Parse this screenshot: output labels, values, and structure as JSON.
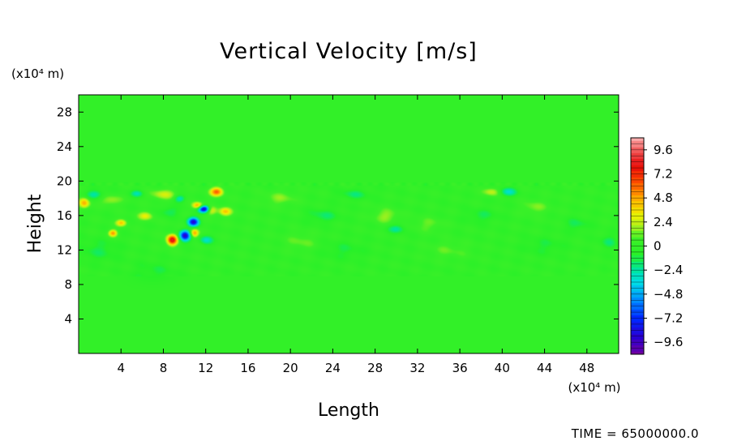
{
  "chart_data": {
    "type": "heatmap",
    "title": "Vertical Velocity [m/s]",
    "xlabel": "Length",
    "ylabel": "Height",
    "x_unit": "(x10⁴ m)",
    "y_unit": "(x10⁴ m)",
    "xlim": [
      0,
      51
    ],
    "ylim": [
      0,
      30
    ],
    "x_ticks": [
      4,
      8,
      12,
      16,
      20,
      24,
      28,
      32,
      36,
      40,
      44,
      48
    ],
    "y_ticks": [
      4,
      8,
      12,
      16,
      20,
      24,
      28
    ],
    "colorbar": {
      "range": [
        -10.8,
        10.8
      ],
      "ticks": [
        9.6,
        7.2,
        4.8,
        2.4,
        0,
        -2.4,
        -4.8,
        -7.2,
        -9.6
      ],
      "tick_labels": [
        "9.6",
        "7.2",
        "4.8",
        "2.4",
        "0",
        "−2.4",
        "−4.8",
        "−7.2",
        "−9.6"
      ]
    },
    "background_value": 0,
    "active_layer": [
      10,
      19.5
    ],
    "features": [
      {
        "x": 1.5,
        "y": 18.5,
        "value": -2.5,
        "sx": 0.8,
        "sy": 0.5
      },
      {
        "x": 0.5,
        "y": 17.5,
        "value": 4.5,
        "sx": 0.5,
        "sy": 0.6
      },
      {
        "x": 3.0,
        "y": 17.8,
        "value": 2.0,
        "sx": 1.0,
        "sy": 0.6
      },
      {
        "x": 4.0,
        "y": 15.2,
        "value": 4.0,
        "sx": 0.5,
        "sy": 0.4
      },
      {
        "x": 3.2,
        "y": 14.0,
        "value": 5.0,
        "sx": 0.4,
        "sy": 0.4
      },
      {
        "x": 6.3,
        "y": 16.0,
        "value": 3.0,
        "sx": 0.7,
        "sy": 0.5
      },
      {
        "x": 5.5,
        "y": 18.6,
        "value": -2.5,
        "sx": 0.6,
        "sy": 0.4
      },
      {
        "x": 8.0,
        "y": 18.5,
        "value": 2.5,
        "sx": 1.2,
        "sy": 0.6
      },
      {
        "x": 8.5,
        "y": 16.5,
        "value": -1.5,
        "sx": 1.0,
        "sy": 0.6
      },
      {
        "x": 8.8,
        "y": 13.2,
        "value": 8.5,
        "sx": 0.5,
        "sy": 0.6
      },
      {
        "x": 10.0,
        "y": 13.7,
        "value": -9.0,
        "sx": 0.5,
        "sy": 0.6
      },
      {
        "x": 10.8,
        "y": 15.3,
        "value": -8.5,
        "sx": 0.5,
        "sy": 0.5
      },
      {
        "x": 10.9,
        "y": 14.0,
        "value": 5.0,
        "sx": 0.4,
        "sy": 0.5
      },
      {
        "x": 11.8,
        "y": 16.8,
        "value": -9.5,
        "sx": 0.5,
        "sy": 0.4
      },
      {
        "x": 11.2,
        "y": 17.2,
        "value": 5.0,
        "sx": 0.5,
        "sy": 0.4
      },
      {
        "x": 13.0,
        "y": 18.8,
        "value": 6.0,
        "sx": 0.6,
        "sy": 0.5
      },
      {
        "x": 12.5,
        "y": 16.6,
        "value": 3.0,
        "sx": 0.5,
        "sy": 0.5
      },
      {
        "x": 13.8,
        "y": 16.5,
        "value": 4.0,
        "sx": 0.6,
        "sy": 0.5
      },
      {
        "x": 12.0,
        "y": 13.2,
        "value": -3.0,
        "sx": 0.6,
        "sy": 0.5
      },
      {
        "x": 9.5,
        "y": 18.0,
        "value": -3.0,
        "sx": 0.5,
        "sy": 0.4
      },
      {
        "x": 19.0,
        "y": 18.0,
        "value": 1.5,
        "sx": 1.5,
        "sy": 0.8
      },
      {
        "x": 23.0,
        "y": 16.0,
        "value": -1.5,
        "sx": 1.5,
        "sy": 0.8
      },
      {
        "x": 26.0,
        "y": 18.5,
        "value": -1.5,
        "sx": 1.5,
        "sy": 0.6
      },
      {
        "x": 29.0,
        "y": 16.0,
        "value": 1.8,
        "sx": 1.2,
        "sy": 0.8
      },
      {
        "x": 30.0,
        "y": 14.5,
        "value": -2.2,
        "sx": 0.8,
        "sy": 0.5
      },
      {
        "x": 33.0,
        "y": 15.0,
        "value": 1.2,
        "sx": 1.5,
        "sy": 0.8
      },
      {
        "x": 38.0,
        "y": 16.0,
        "value": -1.2,
        "sx": 1.5,
        "sy": 0.8
      },
      {
        "x": 39.0,
        "y": 18.8,
        "value": 2.5,
        "sx": 0.8,
        "sy": 0.5
      },
      {
        "x": 40.5,
        "y": 18.8,
        "value": -3.0,
        "sx": 0.8,
        "sy": 0.5
      },
      {
        "x": 43.0,
        "y": 17.0,
        "value": 1.5,
        "sx": 1.2,
        "sy": 0.8
      },
      {
        "x": 47.0,
        "y": 15.0,
        "value": -1.3,
        "sx": 1.2,
        "sy": 0.8
      },
      {
        "x": 50.0,
        "y": 13.0,
        "value": -1.5,
        "sx": 0.8,
        "sy": 0.8
      },
      {
        "x": 2.0,
        "y": 12.0,
        "value": -1.2,
        "sx": 2.0,
        "sy": 1.2
      },
      {
        "x": 7.0,
        "y": 9.5,
        "value": -1.0,
        "sx": 2.0,
        "sy": 1.2
      },
      {
        "x": 21.0,
        "y": 13.0,
        "value": 1.2,
        "sx": 1.5,
        "sy": 1.0
      },
      {
        "x": 25.0,
        "y": 12.0,
        "value": -1.0,
        "sx": 2.0,
        "sy": 1.0
      },
      {
        "x": 35.0,
        "y": 12.0,
        "value": 1.0,
        "sx": 2.0,
        "sy": 1.0
      },
      {
        "x": 44.0,
        "y": 12.5,
        "value": -1.0,
        "sx": 2.0,
        "sy": 1.0
      }
    ]
  },
  "footer": {
    "time_label": "TIME = 65000000.0"
  }
}
